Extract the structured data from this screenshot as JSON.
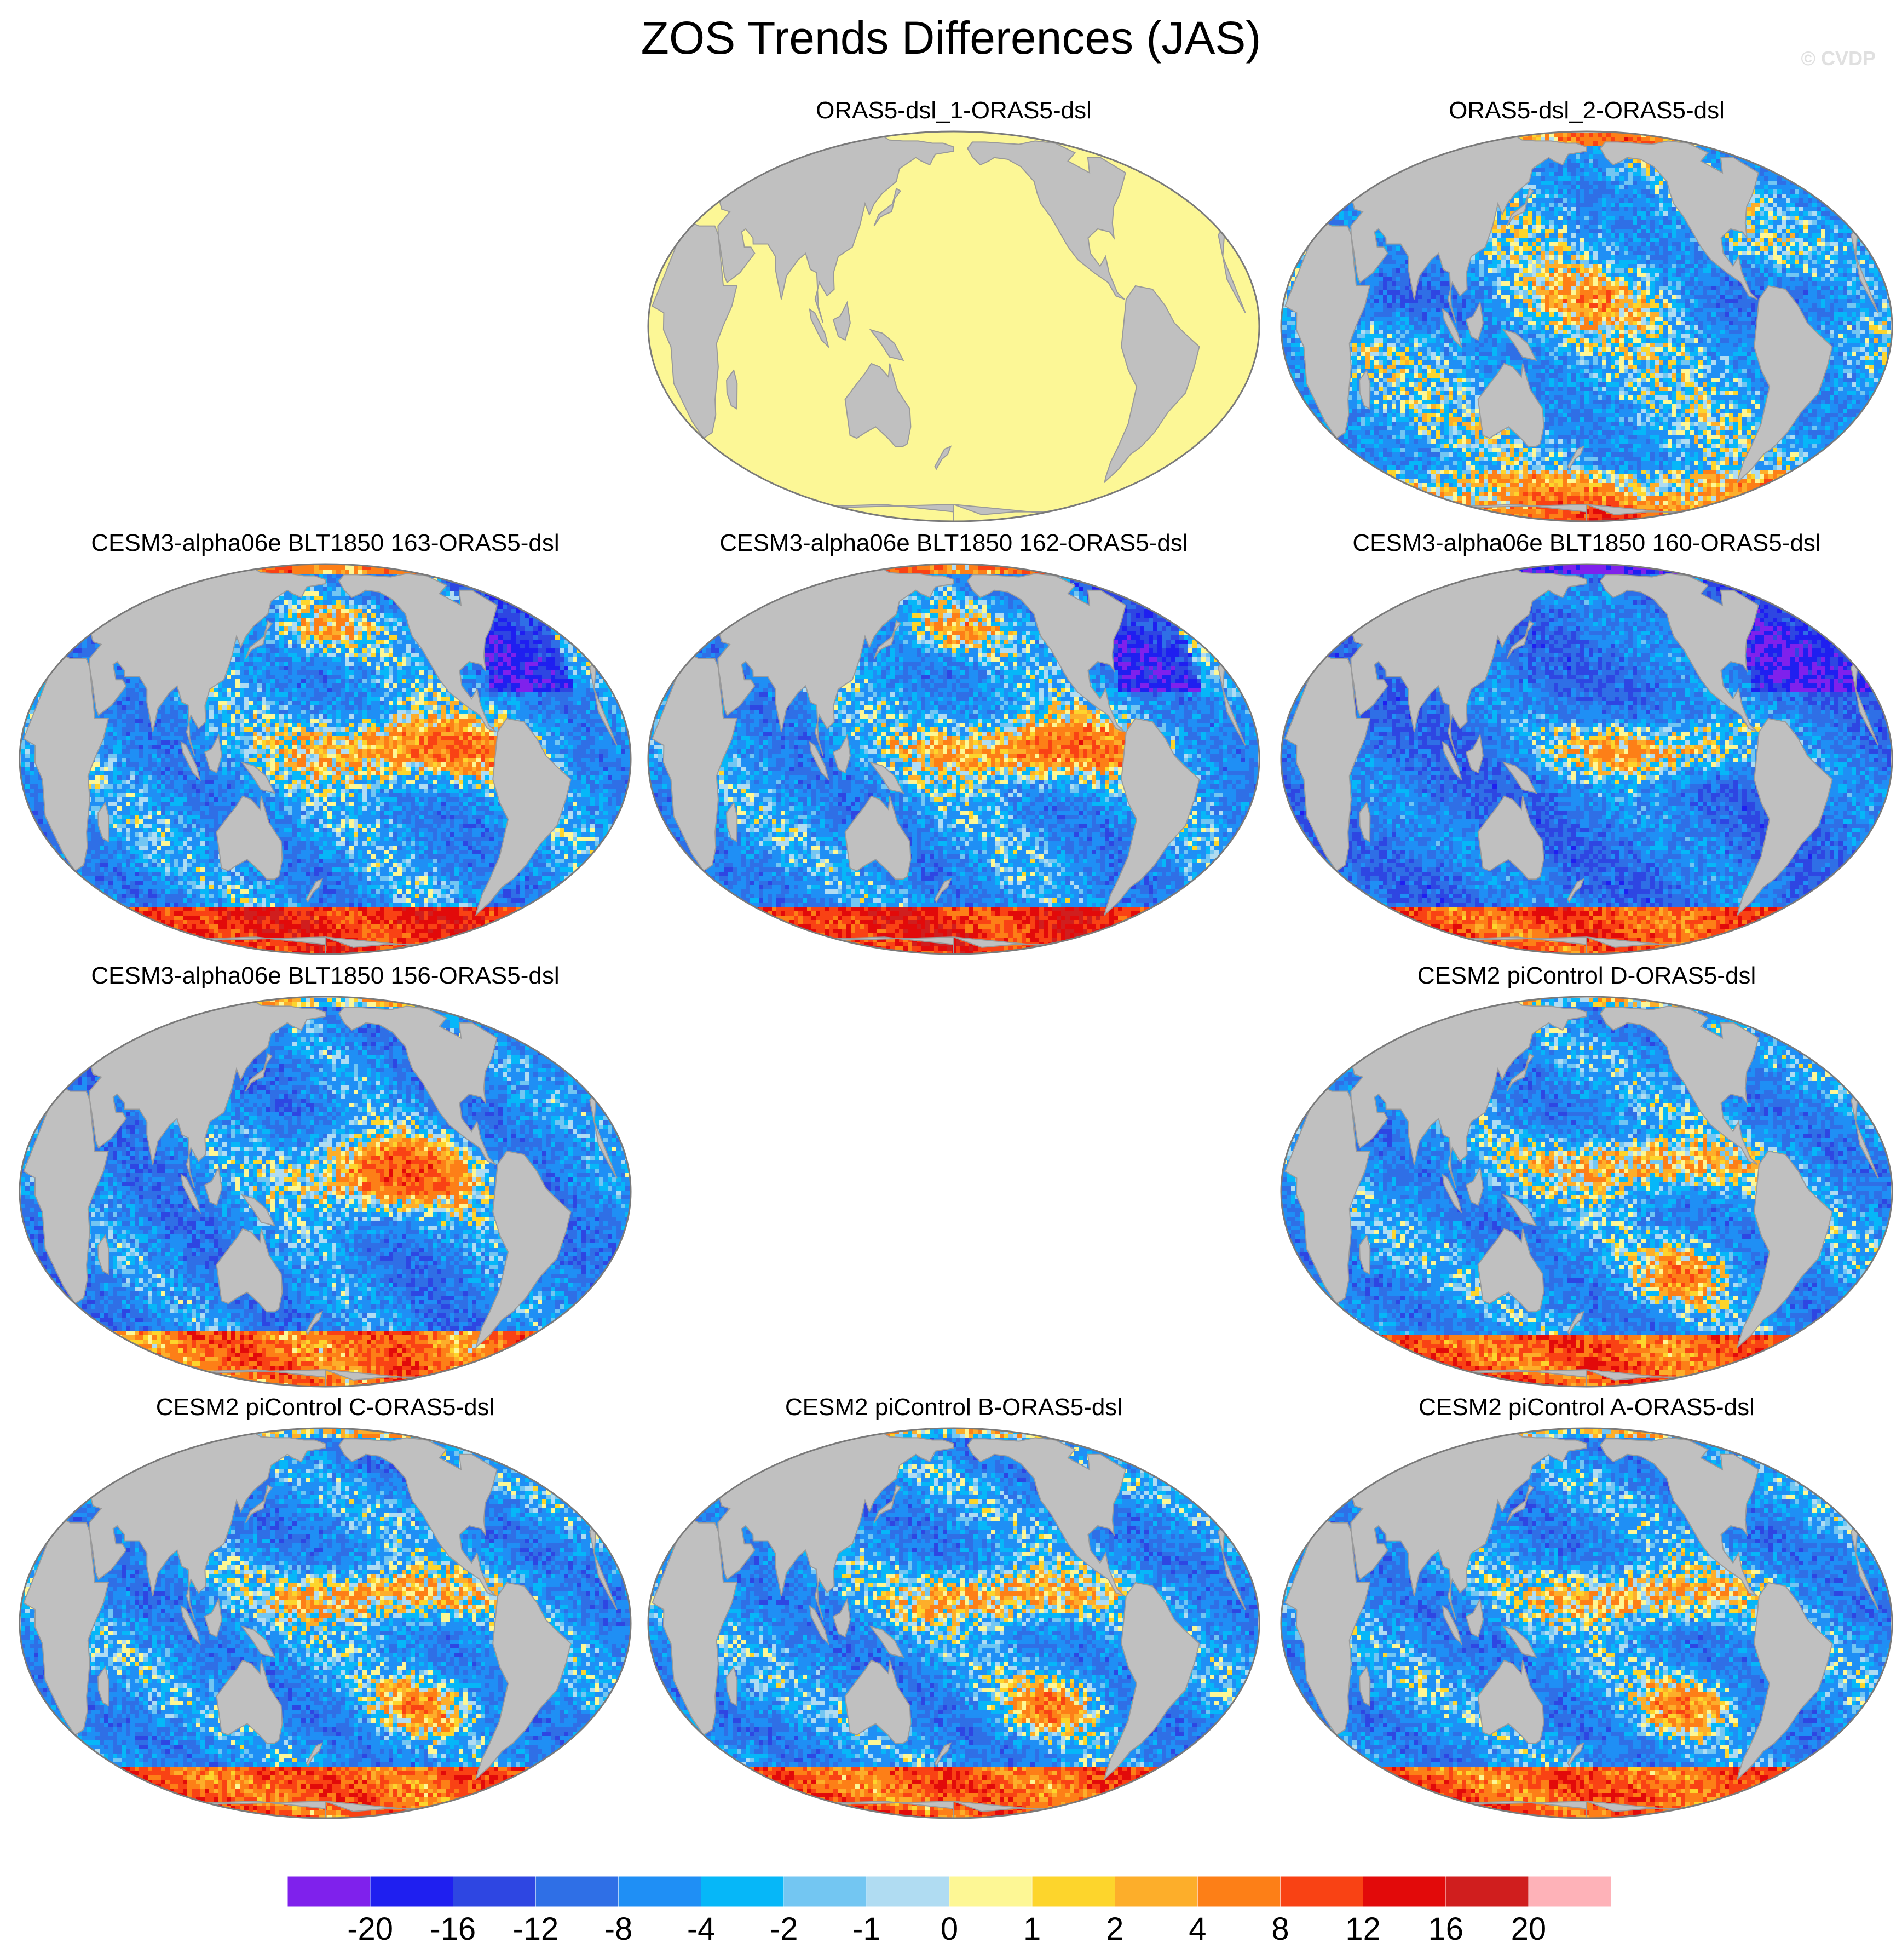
{
  "title": "ZOS Trends Differences (JAS)",
  "credit": "© CVDP",
  "colors": {
    "land": "#c0c0c0",
    "coast": "#9a9a9a",
    "outline": "#7a7a7a",
    "uniform_field": "#fcf796"
  },
  "icons": {
    "panel_map": "globe-map-icon"
  },
  "panels": [
    {
      "title": "ORAS5-dsl_1-ORAS5-dsl",
      "row": 0,
      "col": 1,
      "pattern": "zero"
    },
    {
      "title": "ORAS5-dsl_2-ORAS5-dsl",
      "row": 0,
      "col": 2,
      "pattern": "obs"
    },
    {
      "title": "CESM3-alpha06e BLT1850 163-ORAS5-dsl",
      "row": 1,
      "col": 0,
      "pattern": "cesm3"
    },
    {
      "title": "CESM3-alpha06e BLT1850 162-ORAS5-dsl",
      "row": 1,
      "col": 1,
      "pattern": "cesm3"
    },
    {
      "title": "CESM3-alpha06e BLT1850 160-ORAS5-dsl",
      "row": 1,
      "col": 2,
      "pattern": "cesm3b"
    },
    {
      "title": "CESM3-alpha06e BLT1850 156-ORAS5-dsl",
      "row": 2,
      "col": 0,
      "pattern": "cesm3c"
    },
    {
      "title": "CESM2 piControl D-ORAS5-dsl",
      "row": 2,
      "col": 2,
      "pattern": "cesm2"
    },
    {
      "title": "CESM2 piControl C-ORAS5-dsl",
      "row": 3,
      "col": 0,
      "pattern": "cesm2"
    },
    {
      "title": "CESM2 piControl B-ORAS5-dsl",
      "row": 3,
      "col": 1,
      "pattern": "cesm2"
    },
    {
      "title": "CESM2 piControl A-ORAS5-dsl",
      "row": 3,
      "col": 2,
      "pattern": "cesm2"
    }
  ],
  "colorbar": {
    "labels": [
      "-20",
      "-16",
      "-12",
      "-8",
      "-4",
      "-2",
      "-1",
      "0",
      "1",
      "2",
      "4",
      "8",
      "12",
      "16",
      "20"
    ],
    "levels": [
      -20,
      -16,
      -12,
      -8,
      -4,
      -2,
      -1,
      0,
      1,
      2,
      4,
      8,
      12,
      16,
      20
    ],
    "colors": [
      "#7f21ec",
      "#1f1ff0",
      "#2e46e2",
      "#2f6fe6",
      "#1f8ff5",
      "#06b7f8",
      "#73c6f2",
      "#b0dcf2",
      "#fdf795",
      "#fdd52c",
      "#fdae2a",
      "#fd7f17",
      "#f94214",
      "#e20a0a",
      "#d01e1e",
      "#feb2b8"
    ]
  }
}
